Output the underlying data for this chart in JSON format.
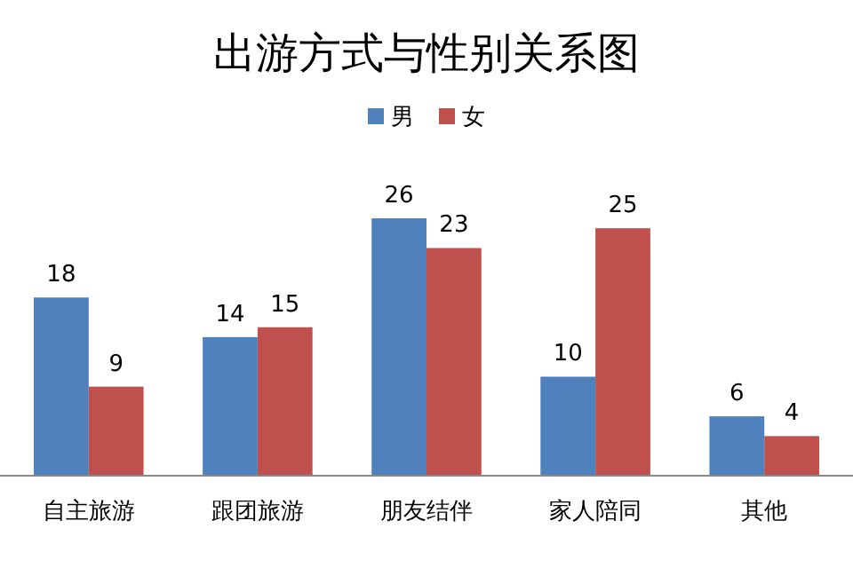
{
  "chart_data": {
    "type": "bar",
    "title": "出游方式与性别关系图",
    "categories": [
      "自主旅游",
      "跟团旅游",
      "朋友结伴",
      "家人陪同",
      "其他"
    ],
    "series": [
      {
        "name": "男",
        "color": "#4f81bd",
        "values": [
          18,
          14,
          26,
          10,
          6
        ]
      },
      {
        "name": "女",
        "color": "#c0504d",
        "values": [
          9,
          15,
          23,
          25,
          4
        ]
      }
    ],
    "data_labels": true,
    "legend": "top"
  }
}
